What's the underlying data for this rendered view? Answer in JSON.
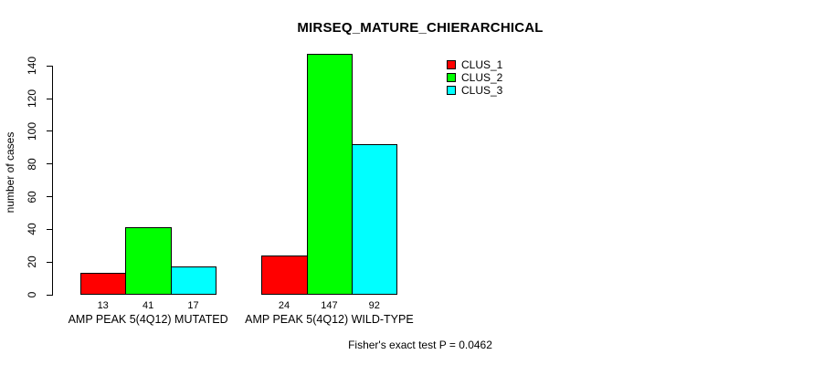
{
  "chart_data": {
    "type": "bar",
    "title": "MIRSEQ_MATURE_CHIERARCHICAL",
    "xlabel": "",
    "ylabel": "number of cases",
    "categories": [
      "AMP PEAK 5(4Q12) MUTATED",
      "AMP PEAK 5(4Q12) WILD-TYPE"
    ],
    "series": [
      {
        "name": "CLUS_1",
        "color": "#FF0000",
        "values": [
          13,
          24
        ]
      },
      {
        "name": "CLUS_2",
        "color": "#00FF00",
        "values": [
          41,
          147
        ]
      },
      {
        "name": "CLUS_3",
        "color": "#00FFFF",
        "values": [
          17,
          92
        ]
      }
    ],
    "bar_value_labels": [
      [
        "13",
        "41",
        "17"
      ],
      [
        "24",
        "147",
        "92"
      ]
    ],
    "yticks": [
      0,
      20,
      40,
      60,
      80,
      100,
      120,
      140
    ],
    "ylim": [
      0,
      147
    ],
    "grid": false,
    "legend_position": "top-right",
    "annotation": "Fisher's exact test P = 0.0462"
  },
  "colors": {
    "background": "#FFFFFF",
    "axis": "#000000",
    "text": "#000000"
  }
}
